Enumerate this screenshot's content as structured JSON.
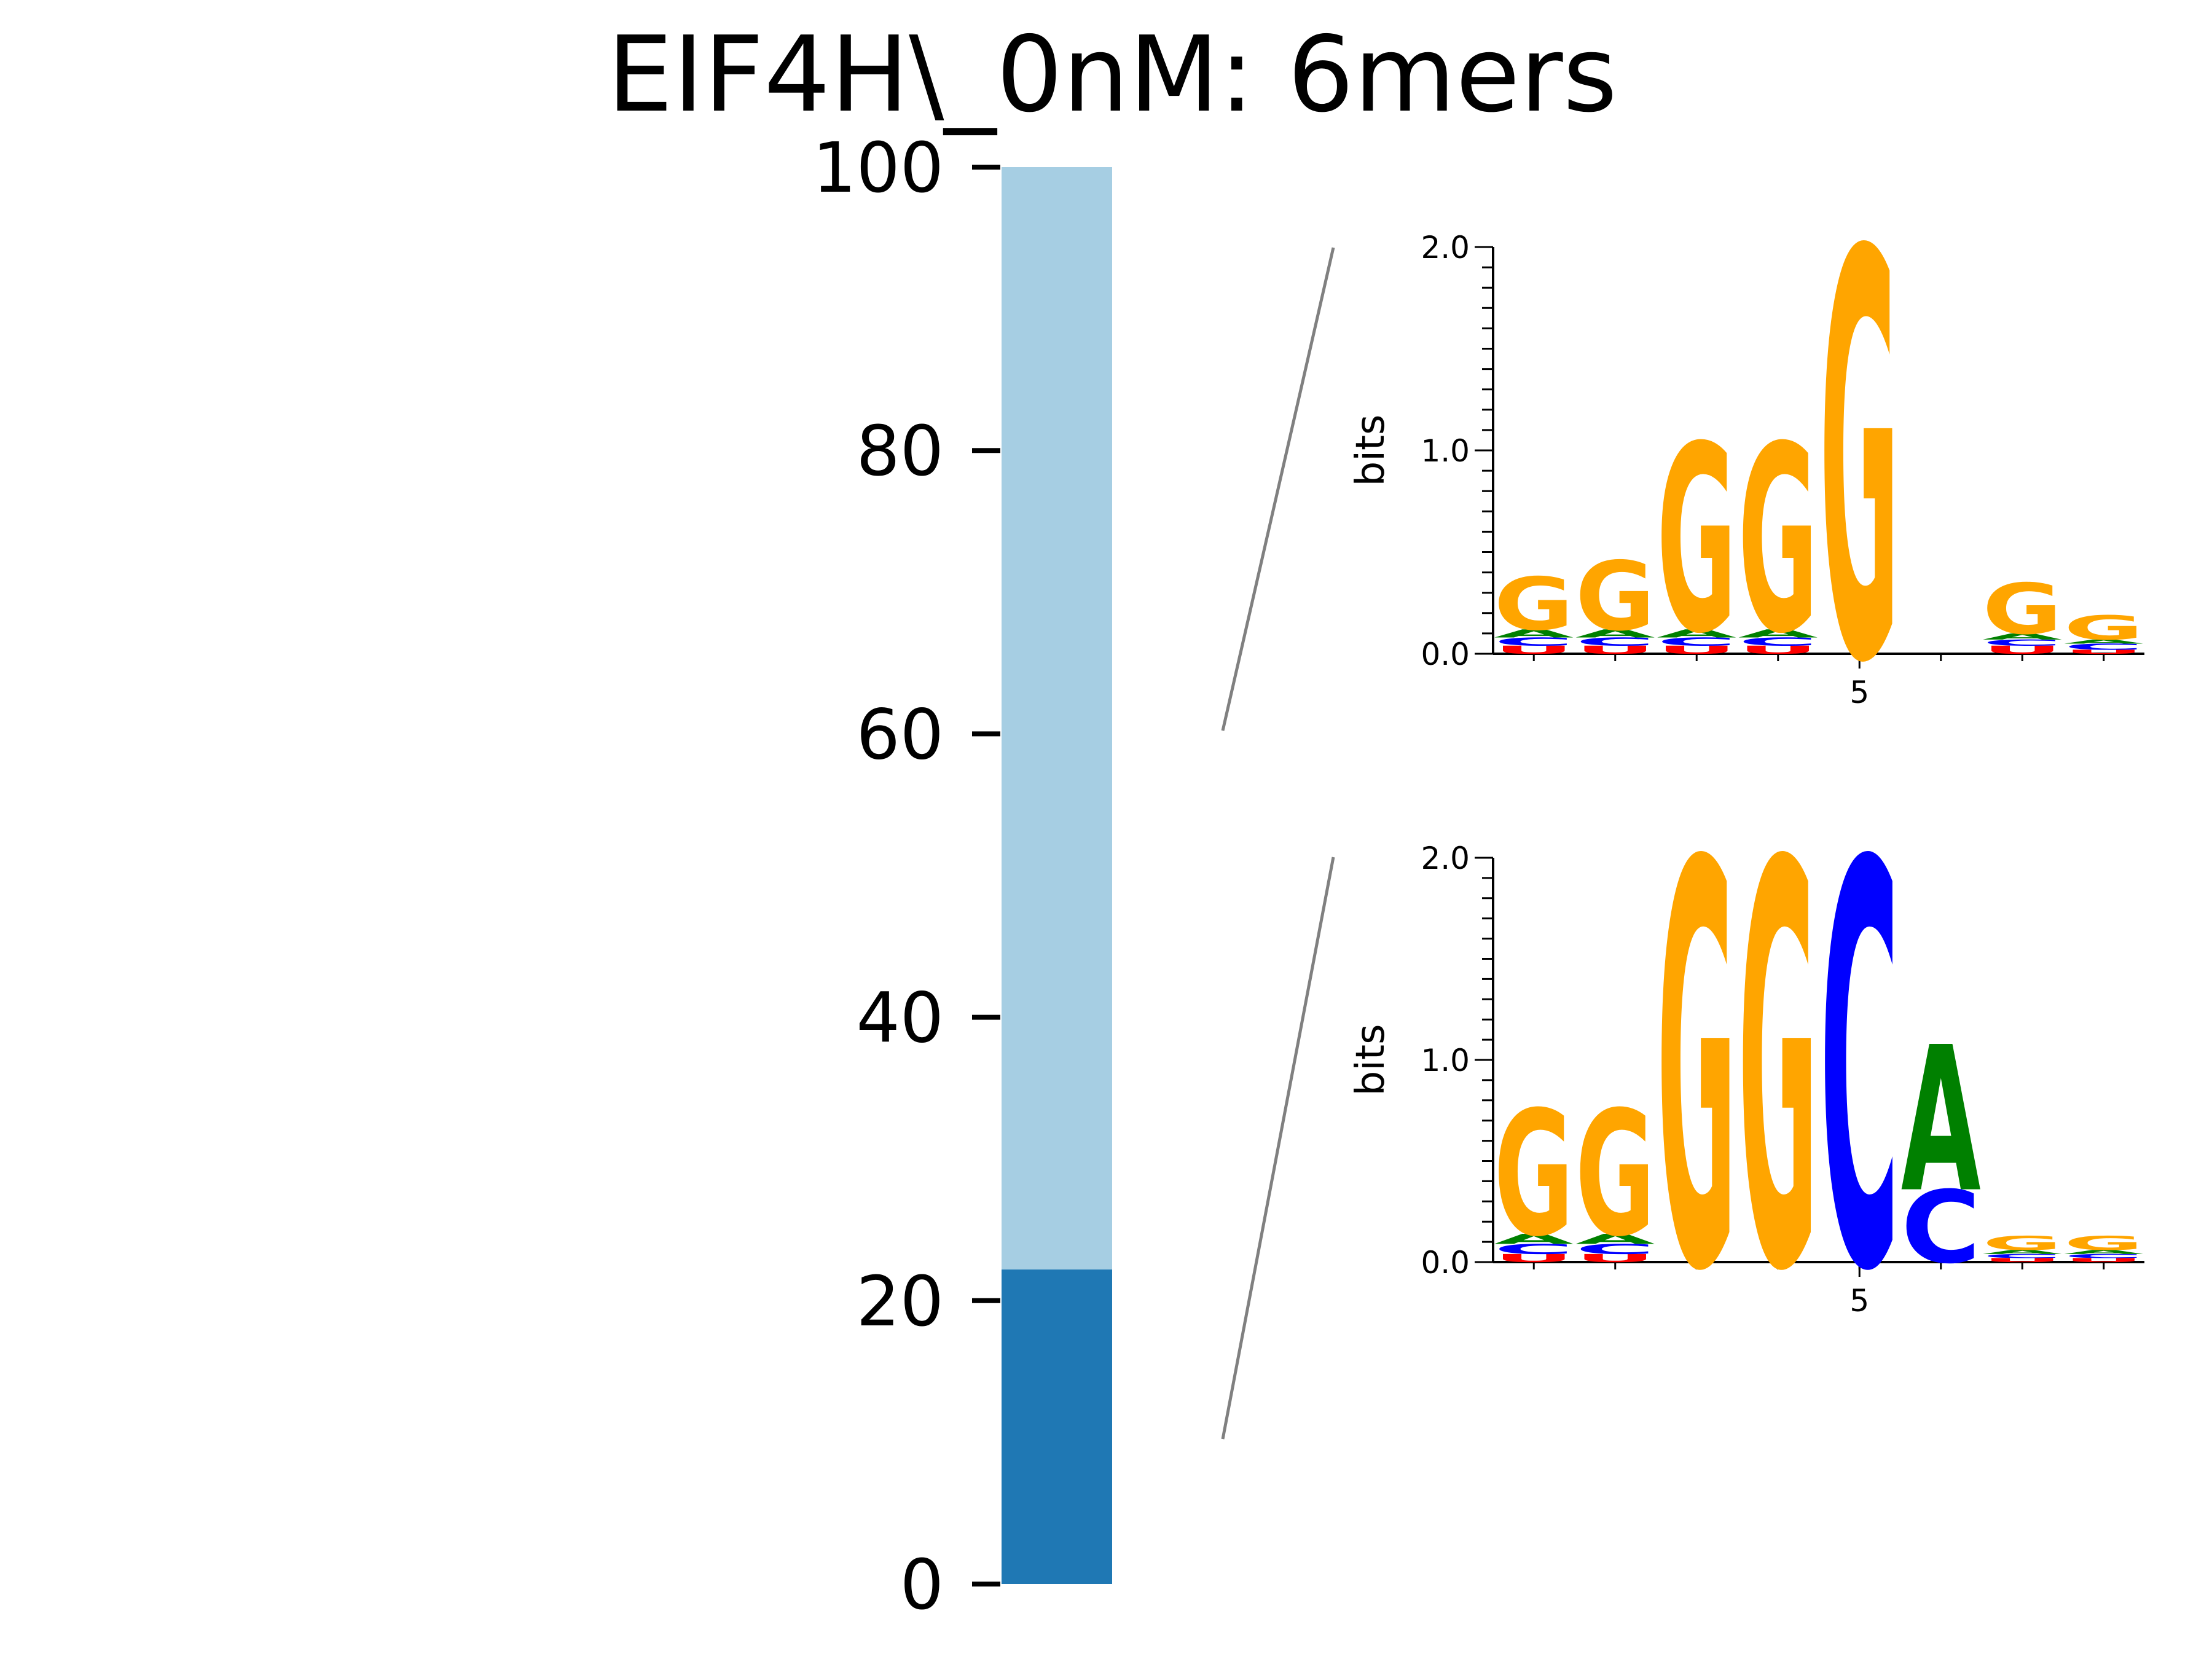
{
  "chart_data": {
    "type": "stacked-bar-with-sequence-logos",
    "title": "EIF4H\\_0nM: 6mers",
    "bar": {
      "ylim": [
        0,
        100
      ],
      "yticks": [
        "0",
        "20",
        "40",
        "60",
        "80",
        "100"
      ],
      "segments": [
        {
          "value_from": 0,
          "value_to": 22.2,
          "color": "#1f78b4"
        },
        {
          "value_from": 22.2,
          "value_to": 100,
          "color": "#a6cee3"
        }
      ]
    },
    "logos": [
      {
        "links_to_segment": 1,
        "ylabel": "bits",
        "ylim": [
          0,
          2.0
        ],
        "yticks": [
          "0.0",
          "1.0",
          "2.0"
        ],
        "xticks": [
          "5"
        ],
        "positions": [
          [
            {
              "base": "U",
              "bits": 0.04
            },
            {
              "base": "C",
              "bits": 0.04
            },
            {
              "base": "A",
              "bits": 0.04
            },
            {
              "base": "G",
              "bits": 0.26
            }
          ],
          [
            {
              "base": "U",
              "bits": 0.04
            },
            {
              "base": "C",
              "bits": 0.04
            },
            {
              "base": "A",
              "bits": 0.04
            },
            {
              "base": "G",
              "bits": 0.34
            }
          ],
          [
            {
              "base": "U",
              "bits": 0.04
            },
            {
              "base": "C",
              "bits": 0.04
            },
            {
              "base": "A",
              "bits": 0.04
            },
            {
              "base": "G",
              "bits": 0.92
            }
          ],
          [
            {
              "base": "U",
              "bits": 0.04
            },
            {
              "base": "C",
              "bits": 0.04
            },
            {
              "base": "A",
              "bits": 0.04
            },
            {
              "base": "G",
              "bits": 0.92
            }
          ],
          [
            {
              "base": "G",
              "bits": 2.0
            }
          ],
          [],
          [
            {
              "base": "U",
              "bits": 0.04
            },
            {
              "base": "C",
              "bits": 0.03
            },
            {
              "base": "A",
              "bits": 0.03
            },
            {
              "base": "G",
              "bits": 0.25
            }
          ],
          [
            {
              "base": "U",
              "bits": 0.02
            },
            {
              "base": "C",
              "bits": 0.03
            },
            {
              "base": "A",
              "bits": 0.02
            },
            {
              "base": "G",
              "bits": 0.12
            }
          ]
        ]
      },
      {
        "links_to_segment": 0,
        "ylabel": "bits",
        "ylim": [
          0,
          2.0
        ],
        "yticks": [
          "0.0",
          "1.0",
          "2.0"
        ],
        "xticks": [
          "5"
        ],
        "positions": [
          [
            {
              "base": "U",
              "bits": 0.04
            },
            {
              "base": "C",
              "bits": 0.05
            },
            {
              "base": "A",
              "bits": 0.05
            },
            {
              "base": "G",
              "bits": 0.62
            }
          ],
          [
            {
              "base": "U",
              "bits": 0.04
            },
            {
              "base": "C",
              "bits": 0.05
            },
            {
              "base": "A",
              "bits": 0.05
            },
            {
              "base": "G",
              "bits": 0.62
            }
          ],
          [
            {
              "base": "G",
              "bits": 2.0
            }
          ],
          [
            {
              "base": "G",
              "bits": 2.0
            }
          ],
          [
            {
              "base": "C",
              "bits": 2.0
            }
          ],
          [
            {
              "base": "C",
              "bits": 0.36
            },
            {
              "base": "A",
              "bits": 0.72
            }
          ],
          [
            {
              "base": "U",
              "bits": 0.02
            },
            {
              "base": "C",
              "bits": 0.02
            },
            {
              "base": "A",
              "bits": 0.02
            },
            {
              "base": "G",
              "bits": 0.07
            }
          ],
          [
            {
              "base": "U",
              "bits": 0.02
            },
            {
              "base": "C",
              "bits": 0.02
            },
            {
              "base": "A",
              "bits": 0.02
            },
            {
              "base": "G",
              "bits": 0.07
            }
          ]
        ]
      }
    ]
  },
  "colors": {
    "A": "#008000",
    "C": "#0000ff",
    "G": "#ffa500",
    "U": "#ff0000",
    "connector": "#808080"
  }
}
